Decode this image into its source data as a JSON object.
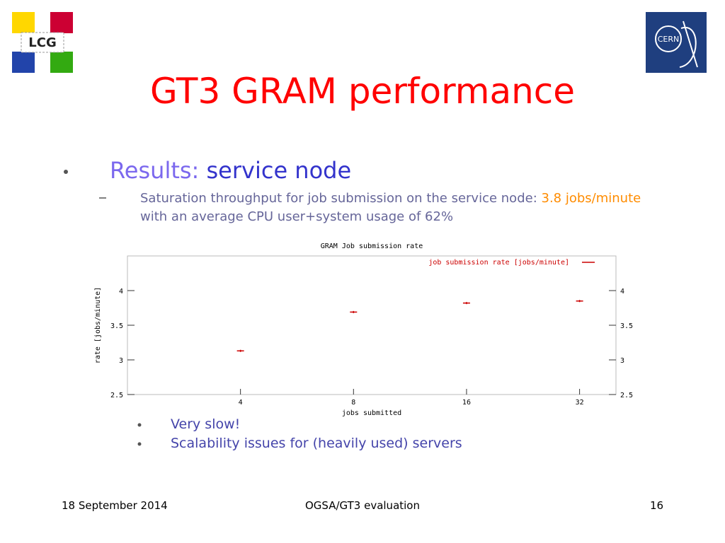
{
  "logos": {
    "left": "LCG",
    "right": "CERN"
  },
  "header": {
    "title": "GT3 GRAM performance"
  },
  "bullets": {
    "main": {
      "label": "Results:",
      "emphasis": "service node"
    },
    "sub": {
      "text_start": "Saturation throughput for job submission on the service node:",
      "highlight": "3.8 jobs/minute",
      "text_end": "with an average CPU user+system usage of 62%"
    },
    "notes": [
      "Very slow!",
      "Scalability issues for (heavily used) servers"
    ]
  },
  "footer": {
    "date": "18 September 2014",
    "center": "OGSA/GT3 evaluation",
    "page": "16"
  },
  "chart_data": {
    "type": "scatter",
    "title": "GRAM Job submission rate",
    "x_label": "jobs submitted",
    "y_label": "rate [jobs/minute]",
    "x": [
      4,
      8,
      16,
      32
    ],
    "series": [
      {
        "name": "job submission rate [jobs/minute]",
        "color": "#cc0000",
        "values": [
          3.13,
          3.69,
          3.82,
          3.85
        ]
      }
    ],
    "xlim": [
      2,
      40
    ],
    "xticks": [
      4,
      8,
      16,
      32
    ],
    "xscale": "log",
    "ylim": [
      2.5,
      4.5
    ],
    "yticks": [
      2.5,
      3,
      3.5,
      4
    ],
    "legend": "top-right"
  }
}
